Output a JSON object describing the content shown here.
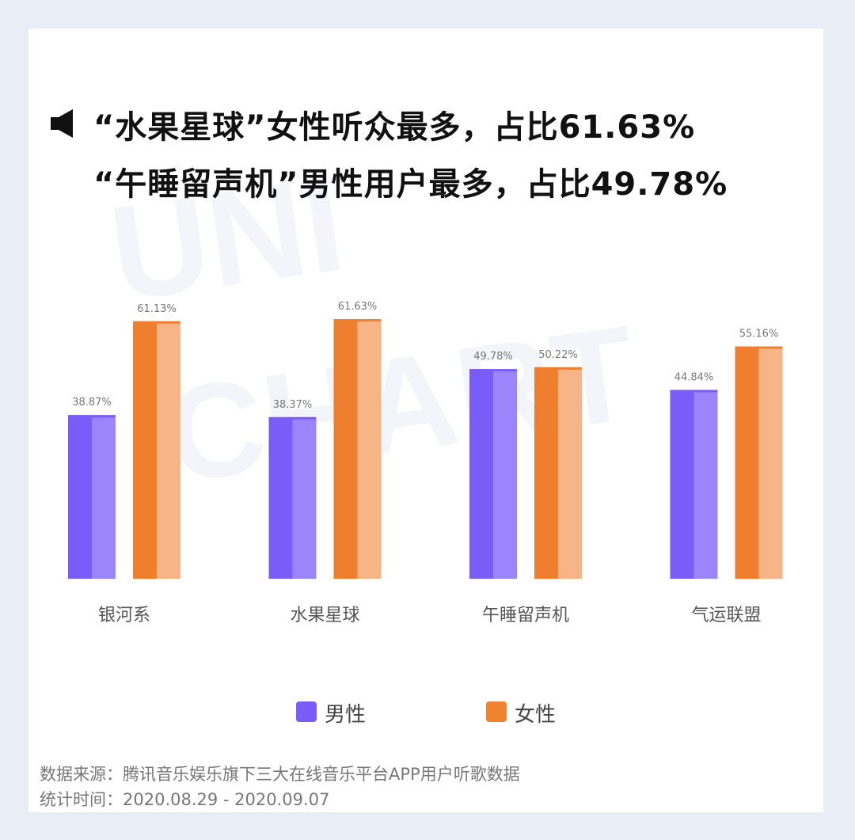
{
  "headline": {
    "line1": "“水果星球”女性听众最多，占比61.63%",
    "line2": "“午睡留声机”男性用户最多，占比49.78%"
  },
  "watermark": {
    "text_1": "UNI",
    "text_2": "CHART"
  },
  "legend": [
    {
      "label": "男性",
      "color": "#7a5cf8"
    },
    {
      "label": "女性",
      "color": "#f08330"
    }
  ],
  "footer": {
    "source": "数据来源：腾讯音乐娱乐旗下三大在线音乐平台APP用户听歌数据",
    "period": "统计时间：2020.08.29 - 2020.09.07"
  },
  "chart_data": {
    "type": "bar",
    "categories": [
      "银河系",
      "水果星球",
      "午睡留声机",
      "气运联盟"
    ],
    "series": [
      {
        "name": "男性",
        "values": [
          38.87,
          38.37,
          49.78,
          44.84
        ],
        "labels": [
          "38.87%",
          "38.37%",
          "49.78%",
          "44.84%"
        ],
        "color": "#7a5cf8",
        "color_light": "#9a85fb"
      },
      {
        "name": "女性",
        "values": [
          61.13,
          61.63,
          50.22,
          55.16
        ],
        "labels": [
          "61.13%",
          "61.63%",
          "50.22%",
          "55.16%"
        ],
        "color": "#ef7f2e",
        "color_light": "#f6b487"
      }
    ],
    "ylim": [
      0,
      100
    ],
    "grid": false,
    "legend_position": "bottom"
  }
}
